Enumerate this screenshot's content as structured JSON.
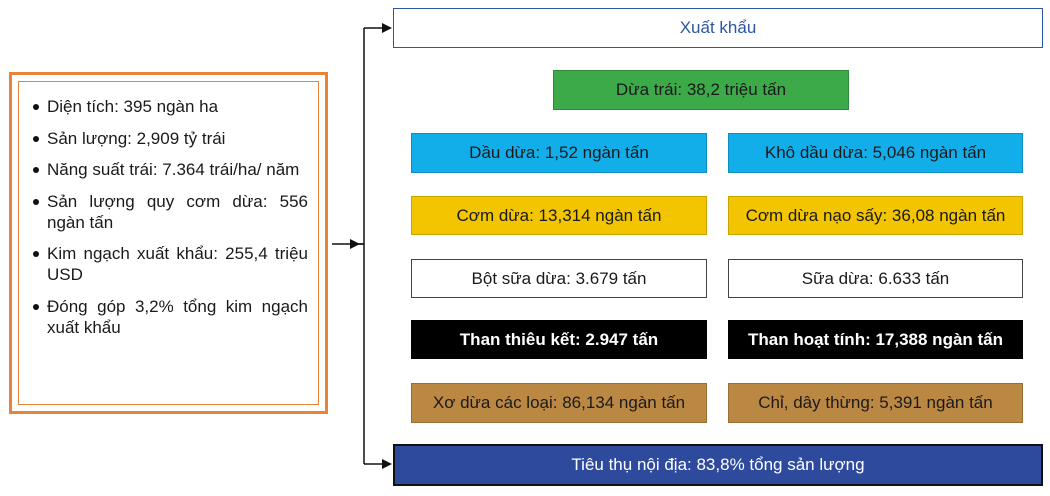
{
  "stats": [
    "Diện tích: 395 ngàn ha",
    "Sản lượng: 2,909 tỷ trái",
    "Năng suất trái: 7.364 trái/ha/ năm",
    "Sản lượng quy cơm dừa: 556 ngàn tấn",
    "Kim ngạch xuất khẩu: 255,4 triệu USD",
    "Đóng góp 3,2% tổng kim ngạch xuất khẩu"
  ],
  "export_label": "Xuất khẩu",
  "whole_coconut": "Dừa trái: 38,2 triệu tấn",
  "products": {
    "coconut_oil": "Dầu dừa: 1,52 ngàn tấn",
    "copra_meal": "Khô dầu dừa: 5,046 ngàn tấn",
    "coconut_meat": "Cơm dừa: 13,314 ngàn tấn",
    "desiccated_coconut": "Cơm dừa nạo sấy: 36,08 ngàn tấn",
    "coconut_milk_powder": "Bột sữa dừa: 3.679 tấn",
    "coconut_milk": "Sữa dừa: 6.633 tấn",
    "charcoal": "Than thiêu kết: 2.947 tấn",
    "activated_carbon": "Than hoạt tính: 17,388 ngàn tấn",
    "coir_fiber": "Xơ dừa các loại: 86,134 ngàn tấn",
    "coir_rope": "Chỉ, dây thừng: 5,391 ngàn tấn"
  },
  "domestic_label": "Tiêu thụ nội địa: 83,8% tổng sản lượng",
  "colors": {
    "border_orange": "#e8833a",
    "export_blue": "#2d56a0",
    "green": "#3caa48",
    "cyan": "#12aeea",
    "yellow": "#f2c500",
    "brown": "#bb8844",
    "domestic_navy": "#2e4a9c"
  }
}
